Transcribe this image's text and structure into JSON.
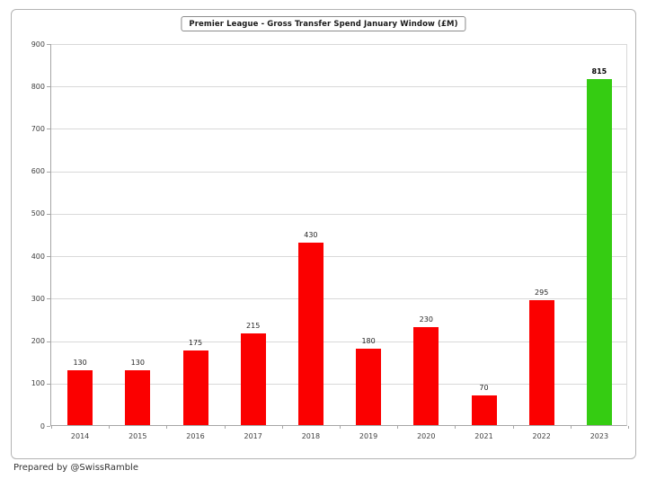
{
  "title": "Premier League - Gross Transfer Spend January Window (£M)",
  "footer": "Prepared by @SwissRamble",
  "chart_data": {
    "type": "bar",
    "title": "Premier League - Gross Transfer Spend January Window (£M)",
    "categories": [
      "2014",
      "2015",
      "2016",
      "2017",
      "2018",
      "2019",
      "2020",
      "2021",
      "2022",
      "2023"
    ],
    "values": [
      130,
      130,
      175,
      215,
      430,
      180,
      230,
      70,
      295,
      815
    ],
    "xlabel": "",
    "ylabel": "",
    "ylim": [
      0,
      900
    ],
    "ytick_step": 100,
    "grid": true,
    "legend": "none",
    "highlight_index": 9,
    "colors": {
      "bar_default": "#fb0000",
      "bar_highlight": "#35cc12",
      "gridline": "#d9d9d9",
      "axis": "#a6a6a6",
      "tick_label": "#404040",
      "value_label": "#262626",
      "highlight_value_label": "#000000"
    }
  }
}
